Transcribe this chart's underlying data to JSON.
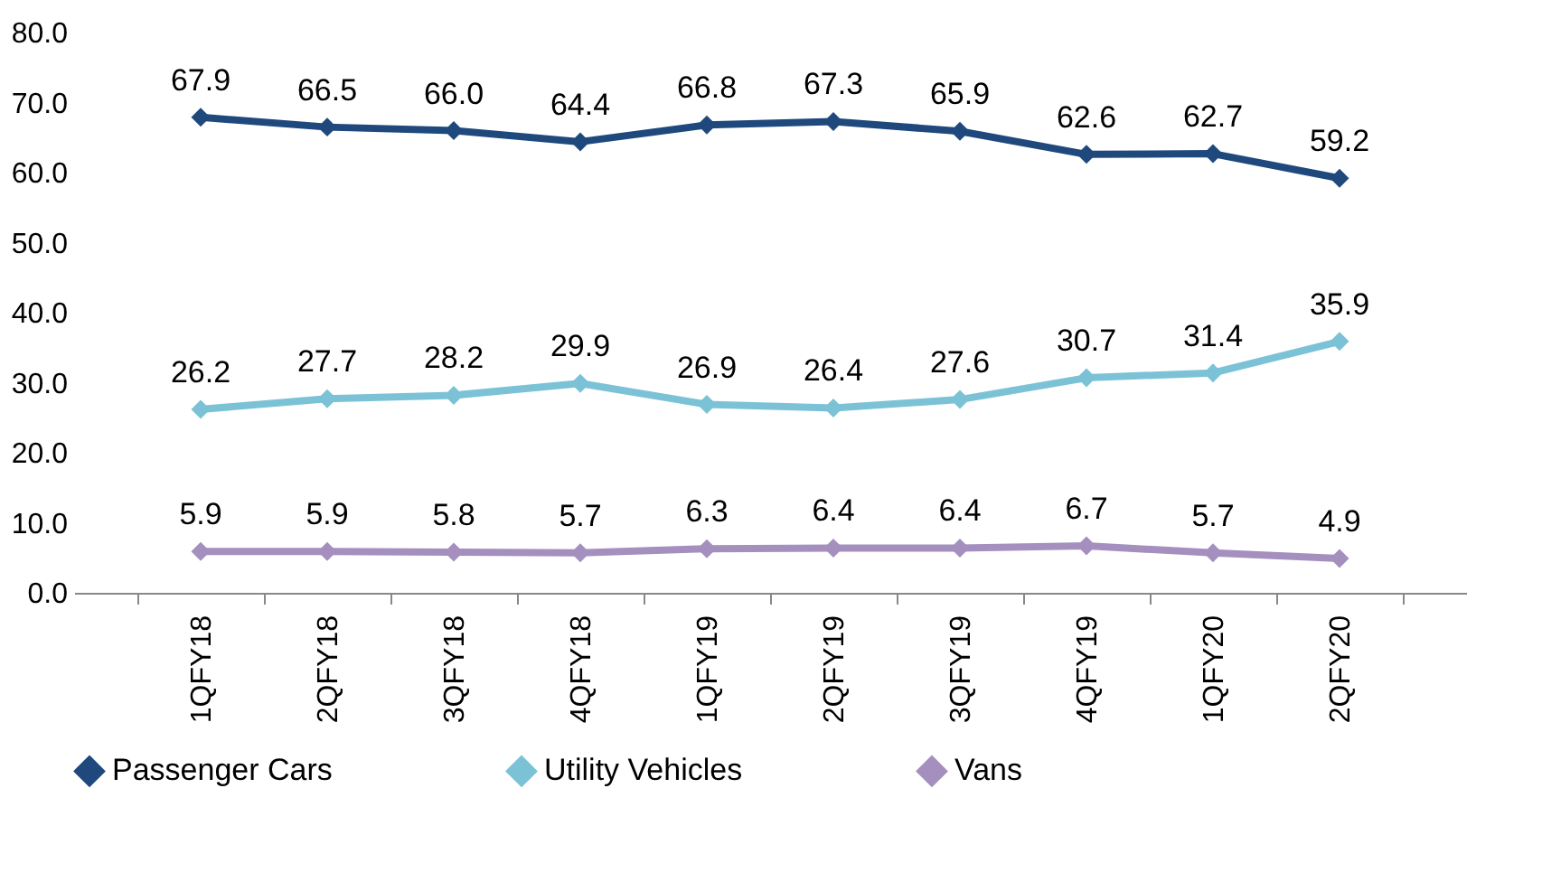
{
  "chart_data": {
    "type": "line",
    "categories": [
      "1QFY18",
      "2QFY18",
      "3QFY18",
      "4QFY18",
      "1QFY19",
      "2QFY19",
      "3QFY19",
      "4QFY19",
      "1QFY20",
      "2QFY20"
    ],
    "series": [
      {
        "name": "Passenger Cars",
        "color": "#1f497d",
        "values": [
          67.9,
          66.5,
          66.0,
          64.4,
          66.8,
          67.3,
          65.9,
          62.6,
          62.7,
          59.2
        ],
        "value_labels": [
          "67.9",
          "66.5",
          "66.0",
          "64.4",
          "66.8",
          "67.3",
          "65.9",
          "62.6",
          "62.7",
          "59.2"
        ]
      },
      {
        "name": "Utility Vehicles",
        "color": "#7cc2d6",
        "values": [
          26.2,
          27.7,
          28.2,
          29.9,
          26.9,
          26.4,
          27.6,
          30.7,
          31.4,
          35.9
        ],
        "value_labels": [
          "26.2",
          "27.7",
          "28.2",
          "29.9",
          "26.9",
          "26.4",
          "27.6",
          "30.7",
          "31.4",
          "35.9"
        ]
      },
      {
        "name": "Vans",
        "color": "#a48fbf",
        "values": [
          5.9,
          5.9,
          5.8,
          5.7,
          6.3,
          6.4,
          6.4,
          6.7,
          5.7,
          4.9
        ],
        "value_labels": [
          "5.9",
          "5.9",
          "5.8",
          "5.7",
          "6.3",
          "6.4",
          "6.4",
          "6.7",
          "5.7",
          "4.9"
        ]
      }
    ],
    "ylim": [
      0,
      80
    ],
    "yticks": [
      {
        "value": 0,
        "label": "0.0"
      },
      {
        "value": 10,
        "label": "10.0"
      },
      {
        "value": 20,
        "label": "20.0"
      },
      {
        "value": 30,
        "label": "30.0"
      },
      {
        "value": 40,
        "label": "40.0"
      },
      {
        "value": 50,
        "label": "50.0"
      },
      {
        "value": 60,
        "label": "60.0"
      },
      {
        "value": 70,
        "label": "70.0"
      },
      {
        "value": 80,
        "label": "80.0"
      }
    ],
    "grid": false,
    "legend": "bottom",
    "marker": "diamond",
    "line_style": "solid"
  }
}
